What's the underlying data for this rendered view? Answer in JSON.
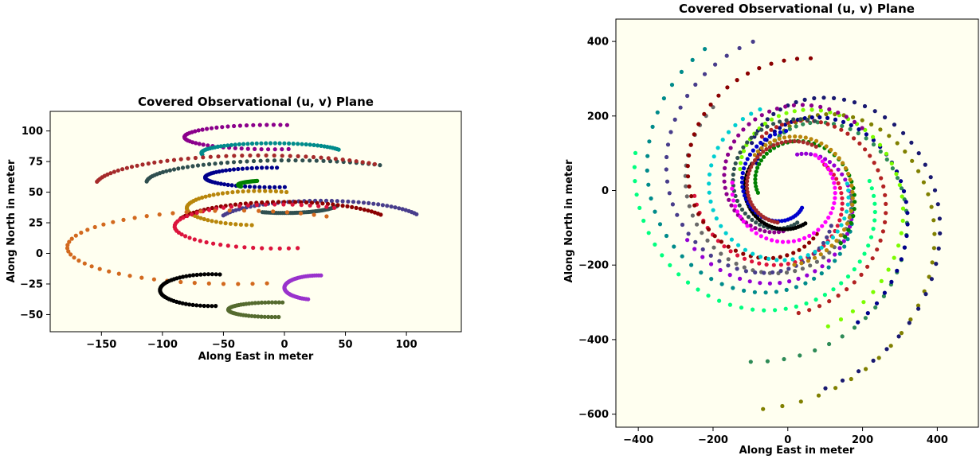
{
  "chart_data": [
    {
      "type": "scatter",
      "title": "Covered Observational (u, v) Plane",
      "xlabel": "Along East in meter",
      "ylabel": "Along North in meter",
      "xlim": [
        -192,
        145
      ],
      "ylim": [
        -64,
        116
      ],
      "xticks": [
        -150,
        -100,
        -50,
        0,
        50,
        100
      ],
      "yticks": [
        -50,
        -25,
        0,
        25,
        50,
        75,
        100
      ],
      "background": "#fffff0",
      "grid": false,
      "series": [
        {
          "color": "#8b008b",
          "cx": -10,
          "cy": 95,
          "rx": 72,
          "ry": 10,
          "t0": 1.4,
          "t1": 4.9
        },
        {
          "color": "#008b8b",
          "cx": -10,
          "cy": 82,
          "rx": 58,
          "ry": 8,
          "t0": 0.35,
          "t1": 3.3
        },
        {
          "color": "#2f4f4f",
          "cx": 5,
          "cy": 58,
          "rx": 118,
          "ry": 18,
          "t0": 0.9,
          "t1": 3.1
        },
        {
          "color": "#00008b",
          "cx": -10,
          "cy": 62,
          "rx": 55,
          "ry": 8,
          "t0": 1.5,
          "t1": 4.9
        },
        {
          "color": "#a52a2a",
          "cx": -20,
          "cy": 55,
          "rx": 135,
          "ry": 25,
          "t0": 0.8,
          "t1": 3.0
        },
        {
          "color": "#008000",
          "cx": 0,
          "cy": 56,
          "rx": 38,
          "ry": 4,
          "t0": 2.2,
          "t1": 3.5
        },
        {
          "color": "#b8860b",
          "cx": -20,
          "cy": 37,
          "rx": 60,
          "ry": 14,
          "t0": 1.2,
          "t1": 4.6
        },
        {
          "color": "#2f4f4f",
          "cx": 0,
          "cy": 41,
          "rx": 45,
          "ry": 8,
          "t0": 4.3,
          "t1": 6.0
        },
        {
          "color": "#483d8b",
          "cx": 30,
          "cy": 25,
          "rx": 85,
          "ry": 18,
          "t0": 0.4,
          "t1": 2.8
        },
        {
          "color": "#8b0000",
          "cx": 0,
          "cy": 22,
          "rx": 90,
          "ry": 20,
          "t0": 0.5,
          "t1": 2.8
        },
        {
          "color": "#dc143c",
          "cx": -5,
          "cy": 22,
          "rx": 85,
          "ry": 18,
          "t0": 1.0,
          "t1": 4.9
        },
        {
          "color": "#d2691e",
          "cx": -40,
          "cy": 5,
          "rx": 138,
          "ry": 30,
          "t0": 1.0,
          "t1": 4.9
        },
        {
          "color": "#000000",
          "cx": -60,
          "cy": -30,
          "rx": 42,
          "ry": 13,
          "t0": 1.4,
          "t1": 4.8
        },
        {
          "color": "#9932cc",
          "cx": 28,
          "cy": -28,
          "rx": 28,
          "ry": 10,
          "t0": 1.5,
          "t1": 4.4
        },
        {
          "color": "#556b2f",
          "cx": -8,
          "cy": -46,
          "rx": 38,
          "ry": 6,
          "t0": 1.4,
          "t1": 4.8
        }
      ]
    },
    {
      "type": "scatter",
      "title": "Covered Observational (u, v) Plane",
      "xlabel": "Along East in meter",
      "ylabel": "Along North in meter",
      "xlim": [
        -460,
        510
      ],
      "ylim": [
        -635,
        460
      ],
      "xticks": [
        -400,
        -200,
        0,
        200,
        400
      ],
      "yticks": [
        -600,
        -400,
        -200,
        0,
        200,
        400
      ],
      "background": "#fffff0",
      "grid": false,
      "series": [
        {
          "color": "#00ff7f",
          "r0": 420,
          "r1": 220,
          "t0": 2.9,
          "t1": 6.4
        },
        {
          "color": "#808000",
          "r0": 590,
          "r1": 150,
          "t0": 4.6,
          "t1": 8.0
        },
        {
          "color": "#2e8b57",
          "r0": 470,
          "r1": 130,
          "t0": 4.5,
          "t1": 8.2
        },
        {
          "color": "#191970",
          "r0": 540,
          "r1": 160,
          "t0": 4.9,
          "t1": 8.5
        },
        {
          "color": "#00008b",
          "r0": 400,
          "r1": 110,
          "t0": 5.2,
          "t1": 8.7
        },
        {
          "color": "#7cfc00",
          "r0": 380,
          "r1": 140,
          "t0": 5.0,
          "t1": 9.0
        },
        {
          "color": "#b22222",
          "r0": 330,
          "r1": 160,
          "t0": 4.8,
          "t1": 8.3
        },
        {
          "color": "#9400d3",
          "r0": 300,
          "r1": 100,
          "t0": 3.6,
          "t1": 7.6
        },
        {
          "color": "#dc143c",
          "r0": 250,
          "r1": 120,
          "t0": 3.2,
          "t1": 6.9
        },
        {
          "color": "#696969",
          "r0": 300,
          "r1": 170,
          "t0": 2.3,
          "t1": 6.2
        },
        {
          "color": "#008b8b",
          "r0": 440,
          "r1": 180,
          "t0": 2.1,
          "t1": 6.0
        },
        {
          "color": "#483d8b",
          "r0": 410,
          "r1": 150,
          "t0": 1.8,
          "t1": 5.6
        },
        {
          "color": "#8b0000",
          "r0": 360,
          "r1": 140,
          "t0": 1.4,
          "t1": 5.3
        },
        {
          "color": "#8b008b",
          "r0": 260,
          "r1": 110,
          "t0": 0.7,
          "t1": 4.6
        },
        {
          "color": "#2f4f4f",
          "r0": 200,
          "r1": 90,
          "t0": 1.2,
          "t1": 5.0
        },
        {
          "color": "#00ced1",
          "r0": 230,
          "r1": 160,
          "t0": 1.9,
          "t1": 6.4
        },
        {
          "color": "#008000",
          "r0": 200,
          "r1": 80,
          "t0": 5.5,
          "t1": 9.5
        },
        {
          "color": "#000000",
          "r0": 120,
          "r1": 100,
          "t0": 2.5,
          "t1": 5.2
        },
        {
          "color": "#b8860b",
          "r0": 200,
          "r1": 130,
          "t0": 4.8,
          "t1": 8.6
        },
        {
          "color": "#0000cd",
          "r0": 160,
          "r1": 60,
          "t0": 1.6,
          "t1": 5.4
        },
        {
          "color": "#ff00ff",
          "r0": 150,
          "r1": 120,
          "t0": 3.0,
          "t1": 7.2
        },
        {
          "color": "#a52a2a",
          "r0": 140,
          "r1": 90,
          "t0": 1.0,
          "t1": 4.4
        }
      ]
    }
  ]
}
